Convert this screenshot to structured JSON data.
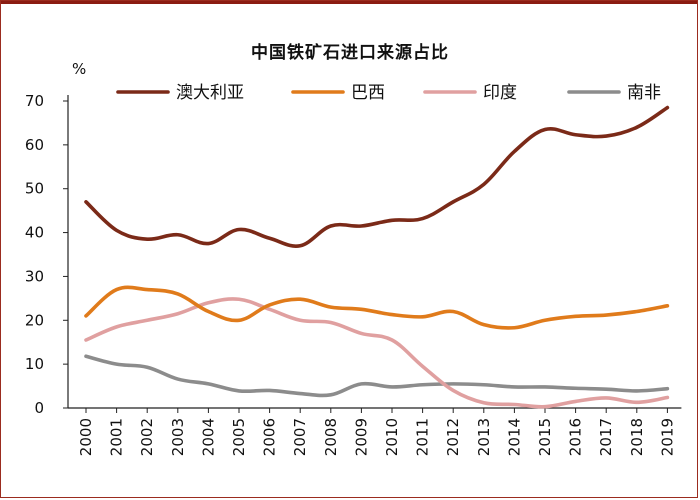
{
  "chart_data": {
    "type": "line",
    "title": "中国铁矿石进口来源占比",
    "ylabel": "%",
    "xlabel": "",
    "ylim": [
      0,
      70
    ],
    "yticks": [
      0,
      10,
      20,
      30,
      40,
      50,
      60,
      70
    ],
    "x": [
      "2000",
      "2001",
      "2002",
      "2003",
      "2004",
      "2005",
      "2006",
      "2007",
      "2008",
      "2009",
      "2010",
      "2011",
      "2012",
      "2013",
      "2014",
      "2015",
      "2016",
      "2017",
      "2018",
      "2019"
    ],
    "grid": false,
    "legend_position": "top",
    "series": [
      {
        "name": "澳大利亚",
        "color": "#7b2a18",
        "values": [
          47,
          40.5,
          38.5,
          39.5,
          37.5,
          40.7,
          38.7,
          37,
          41.5,
          41.5,
          42.8,
          43.2,
          47,
          51,
          58.5,
          63.5,
          62.3,
          62,
          64,
          68.5
        ]
      },
      {
        "name": "巴西",
        "color": "#e07b1b",
        "values": [
          21,
          27,
          27,
          26,
          22,
          20,
          23.5,
          24.8,
          23,
          22.5,
          21.3,
          20.8,
          22,
          19,
          18.3,
          20,
          20.9,
          21.2,
          22,
          23.3
        ]
      },
      {
        "name": "印度",
        "color": "#e0a0a0",
        "values": [
          15.5,
          18.5,
          20,
          21.5,
          24,
          24.8,
          22.5,
          20,
          19.5,
          17,
          15.5,
          9.5,
          4,
          1.2,
          0.8,
          0.3,
          1.5,
          2.3,
          1.3,
          2.4
        ]
      },
      {
        "name": "南非",
        "color": "#8c8c8c",
        "values": [
          11.8,
          10,
          9.3,
          6.6,
          5.5,
          3.9,
          4,
          3.3,
          3,
          5.5,
          4.8,
          5.3,
          5.5,
          5.3,
          4.8,
          4.8,
          4.5,
          4.3,
          3.9,
          4.4
        ]
      }
    ]
  }
}
